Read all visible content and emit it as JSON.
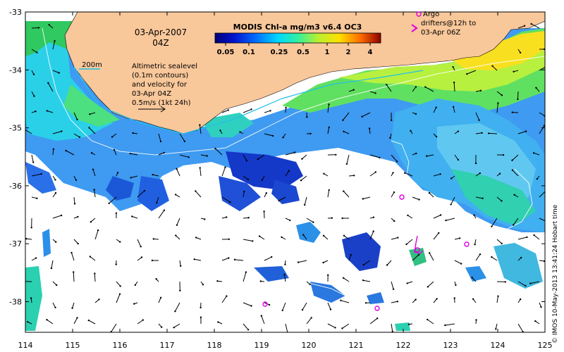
{
  "map": {
    "title": "MODIS Chl-a mg/m3 v6.4 OC3",
    "colorbar_ticks": [
      "0.05",
      "0.1",
      "0.25",
      "0.5",
      "1",
      "2",
      "4"
    ],
    "date": "03-Apr-2007",
    "time": "04Z",
    "isobath_label": "200m",
    "sealevel_note": [
      "Altimetric sealevel",
      "(0.1m contours)",
      "and velocity for",
      "03-Apr 04Z",
      "0.5m/s (1kt 24h)"
    ],
    "argo_note": [
      "Argo",
      "drifters@12h to",
      "03-Apr 06Z"
    ],
    "credit": "© IMOS 10-May-2013 13:41:24 Hobart time",
    "x_ticks": [
      "114",
      "115",
      "116",
      "117",
      "118",
      "119",
      "120",
      "121",
      "122",
      "123",
      "124",
      "125"
    ],
    "y_ticks": [
      "-33",
      "-34",
      "-35",
      "-36",
      "-37",
      "-38"
    ],
    "colors": {
      "land": "#f8c79a",
      "argo": "#e000e0",
      "ocean": "#ffffff"
    }
  }
}
